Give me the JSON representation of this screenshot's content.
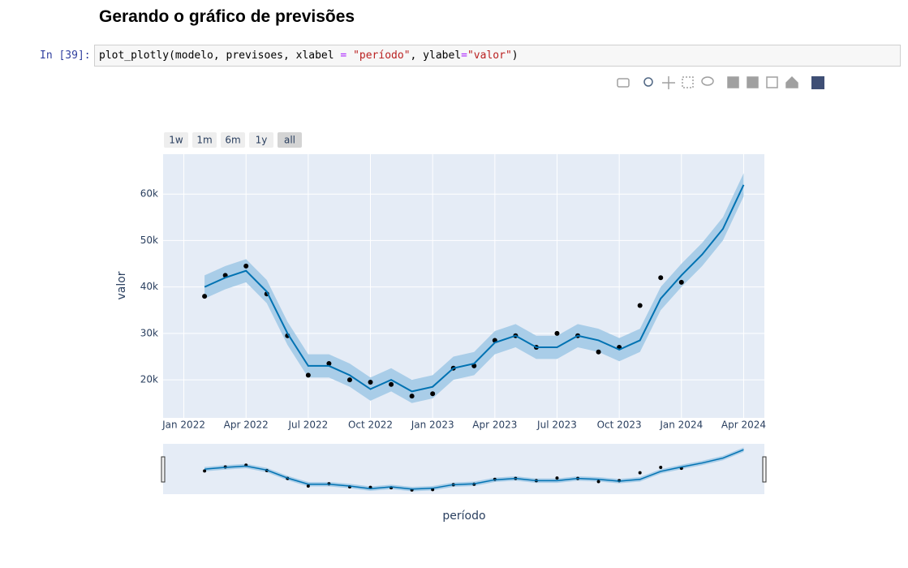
{
  "header": {
    "title": "Gerando o gráfico de previsões"
  },
  "cell": {
    "prompt": "In [39]:",
    "code": [
      "plot_plotly(modelo, previsoes, xlabel ",
      "=",
      " ",
      "\"período\"",
      ", ylabel",
      "=",
      "\"valor\"",
      ")"
    ]
  },
  "chart_data": {
    "type": "line",
    "x_label": "período",
    "y_label": "valor",
    "range_buttons": [
      "1w",
      "1m",
      "6m",
      "1y",
      "all"
    ],
    "x": [
      "2022-02",
      "2022-03",
      "2022-04",
      "2022-05",
      "2022-06",
      "2022-07",
      "2022-08",
      "2022-09",
      "2022-10",
      "2022-11",
      "2022-12",
      "2023-01",
      "2023-02",
      "2023-03",
      "2023-04",
      "2023-05",
      "2023-06",
      "2023-07",
      "2023-08",
      "2023-09",
      "2023-10",
      "2023-11",
      "2023-12",
      "2024-01",
      "2024-02",
      "2024-03",
      "2024-04"
    ],
    "band": {
      "color": "#a9cde8",
      "lower": [
        37500,
        39500,
        41000,
        36500,
        27500,
        20500,
        20500,
        18500,
        15500,
        17500,
        15000,
        16000,
        20000,
        21000,
        25500,
        27000,
        24500,
        24500,
        27000,
        26000,
        24000,
        26000,
        35000,
        40000,
        44500,
        50000,
        59500
      ],
      "upper": [
        42500,
        44500,
        46000,
        41500,
        32500,
        25500,
        25500,
        23500,
        20500,
        22500,
        20000,
        21000,
        25000,
        26000,
        30500,
        32000,
        29500,
        29500,
        32000,
        31000,
        29000,
        31000,
        40000,
        45000,
        49500,
        55000,
        64500
      ]
    },
    "series": [
      {
        "mode": "markers",
        "color": "#000000",
        "values": [
          38000,
          42500,
          44500,
          38500,
          29500,
          21000,
          23500,
          20000,
          19500,
          19000,
          16500,
          17000,
          22500,
          23000,
          28500,
          29500,
          27000,
          30000,
          29500,
          26000,
          27000,
          36000,
          42000,
          41000,
          null,
          null,
          null
        ]
      },
      {
        "mode": "lines",
        "color": "#0072b2",
        "values": [
          40000,
          42000,
          43500,
          39000,
          30000,
          23000,
          23000,
          21000,
          18000,
          20000,
          17500,
          18500,
          22500,
          23500,
          28000,
          29500,
          27000,
          27000,
          29500,
          28500,
          26500,
          28500,
          37500,
          42500,
          47000,
          52500,
          62000
        ]
      }
    ],
    "xlim": [
      "2021-12",
      "2024-05"
    ],
    "xticks": [
      {
        "value": "2022-01",
        "label": "Jan 2022"
      },
      {
        "value": "2022-04",
        "label": "Apr 2022"
      },
      {
        "value": "2022-07",
        "label": "Jul 2022"
      },
      {
        "value": "2022-10",
        "label": "Oct 2022"
      },
      {
        "value": "2023-01",
        "label": "Jan 2023"
      },
      {
        "value": "2023-04",
        "label": "Apr 2023"
      },
      {
        "value": "2023-07",
        "label": "Jul 2023"
      },
      {
        "value": "2023-10",
        "label": "Oct 2023"
      },
      {
        "value": "2024-01",
        "label": "Jan 2024"
      },
      {
        "value": "2024-04",
        "label": "Apr 2024"
      }
    ],
    "ylim": [
      11800,
      68600
    ],
    "yticks": [
      {
        "value": 20000,
        "label": "20k"
      },
      {
        "value": 30000,
        "label": "30k"
      },
      {
        "value": 40000,
        "label": "40k"
      },
      {
        "value": 50000,
        "label": "50k"
      },
      {
        "value": 60000,
        "label": "60k"
      }
    ],
    "grid": true,
    "background": "#e5ecf6"
  }
}
